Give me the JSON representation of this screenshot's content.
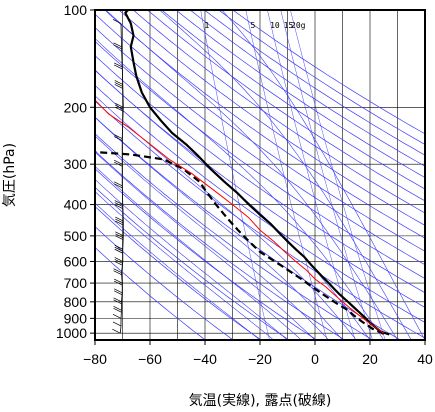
{
  "chart_data": {
    "type": "line",
    "xlabel": "気温(実線), 露点(破線)",
    "ylabel": "気圧(hPa)",
    "xlim": [
      -80,
      40
    ],
    "ylim": [
      1050,
      100
    ],
    "y_scale": "log",
    "x_ticks": [
      "−80",
      "−60",
      "−40",
      "−20",
      "0",
      "20",
      "40"
    ],
    "y_ticks": [
      {
        "p": 100,
        "label": "100"
      },
      {
        "p": 200,
        "label": "200"
      },
      {
        "p": 300,
        "label": "300"
      },
      {
        "p": 400,
        "label": "400"
      },
      {
        "p": 500,
        "label": "500"
      },
      {
        "p": 600,
        "label": "600"
      },
      {
        "p": 700,
        "label": "700"
      },
      {
        "p": 800,
        "label": "800"
      },
      {
        "p": 900,
        "label": "900"
      },
      {
        "p": 1000,
        "label": "1000"
      }
    ],
    "mixing_ratio_labels": [
      "1",
      "5",
      "10",
      "15",
      "20g"
    ],
    "mixing_ratio_values": [
      1,
      5,
      10,
      15,
      20
    ],
    "series": [
      {
        "role": "temperature",
        "style": "solid",
        "color": "#000000",
        "points": [
          [
            27,
            1010
          ],
          [
            24,
            990
          ],
          [
            22,
            960
          ],
          [
            20,
            930
          ],
          [
            18.5,
            900
          ],
          [
            16,
            860
          ],
          [
            14,
            830
          ],
          [
            12,
            800
          ],
          [
            9,
            760
          ],
          [
            7,
            730
          ],
          [
            5,
            700
          ],
          [
            2,
            660
          ],
          [
            -1,
            620
          ],
          [
            -4,
            580
          ],
          [
            -7,
            550
          ],
          [
            -10,
            520
          ],
          [
            -13,
            490
          ],
          [
            -16,
            460
          ],
          [
            -20,
            430
          ],
          [
            -24,
            400
          ],
          [
            -28,
            370
          ],
          [
            -33,
            340
          ],
          [
            -38,
            310
          ],
          [
            -43,
            280
          ],
          [
            -47,
            260
          ],
          [
            -52,
            240
          ],
          [
            -56,
            220
          ],
          [
            -60,
            200
          ],
          [
            -63,
            180
          ],
          [
            -65,
            160
          ],
          [
            -66,
            145
          ],
          [
            -67,
            130
          ],
          [
            -66,
            120
          ],
          [
            -67,
            110
          ],
          [
            -69,
            102
          ],
          [
            -68,
            100
          ]
        ]
      },
      {
        "role": "dewpoint",
        "style": "dashed",
        "color": "#000000",
        "points": [
          [
            25,
            1005
          ],
          [
            21,
            970
          ],
          [
            17,
            920
          ],
          [
            14,
            880
          ],
          [
            12,
            850
          ],
          [
            8,
            810
          ],
          [
            3,
            760
          ],
          [
            -1,
            720
          ],
          [
            -5,
            680
          ],
          [
            -12,
            620
          ],
          [
            -20,
            560
          ],
          [
            -24,
            520
          ],
          [
            -28,
            480
          ],
          [
            -32,
            440
          ],
          [
            -36,
            400
          ],
          [
            -40,
            360
          ],
          [
            -42,
            340
          ],
          [
            -48,
            310
          ],
          [
            -55,
            290
          ],
          [
            -67,
            280
          ],
          [
            -80,
            275
          ]
        ]
      },
      {
        "role": "parcel",
        "style": "solid",
        "color": "#ff0000",
        "points": [
          [
            25,
            1000
          ],
          [
            22,
            960
          ],
          [
            19,
            920
          ],
          [
            16,
            880
          ],
          [
            13,
            840
          ],
          [
            10,
            800
          ],
          [
            7,
            760
          ],
          [
            4,
            720
          ],
          [
            0,
            680
          ],
          [
            -3,
            640
          ],
          [
            -7,
            600
          ],
          [
            -11,
            560
          ],
          [
            -15,
            520
          ],
          [
            -20,
            480
          ],
          [
            -24,
            440
          ],
          [
            -30,
            400
          ],
          [
            -37,
            360
          ],
          [
            -45,
            320
          ],
          [
            -53,
            290
          ],
          [
            -60,
            260
          ],
          [
            -68,
            230
          ],
          [
            -75,
            210
          ],
          [
            -80,
            190
          ]
        ]
      }
    ],
    "wind_profile": [
      [
        1000,
        1
      ],
      [
        950,
        2
      ],
      [
        900,
        2
      ],
      [
        850,
        3
      ],
      [
        800,
        3
      ],
      [
        750,
        4
      ],
      [
        700,
        4
      ],
      [
        650,
        3
      ],
      [
        600,
        5
      ],
      [
        550,
        5
      ],
      [
        500,
        6
      ],
      [
        450,
        6
      ],
      [
        400,
        5
      ],
      [
        350,
        4
      ],
      [
        300,
        4
      ],
      [
        250,
        4
      ],
      [
        200,
        6
      ],
      [
        170,
        5
      ],
      [
        150,
        4
      ],
      [
        130,
        3
      ],
      [
        110,
        2
      ]
    ]
  },
  "colors": {
    "isotherm_grid": "#000000",
    "isobar_grid": "#000000",
    "dry_adiabat": "#3a3aff",
    "moist_adiabat": "#3a3aff",
    "parcel": "#ff0000",
    "frame": "#000000"
  }
}
